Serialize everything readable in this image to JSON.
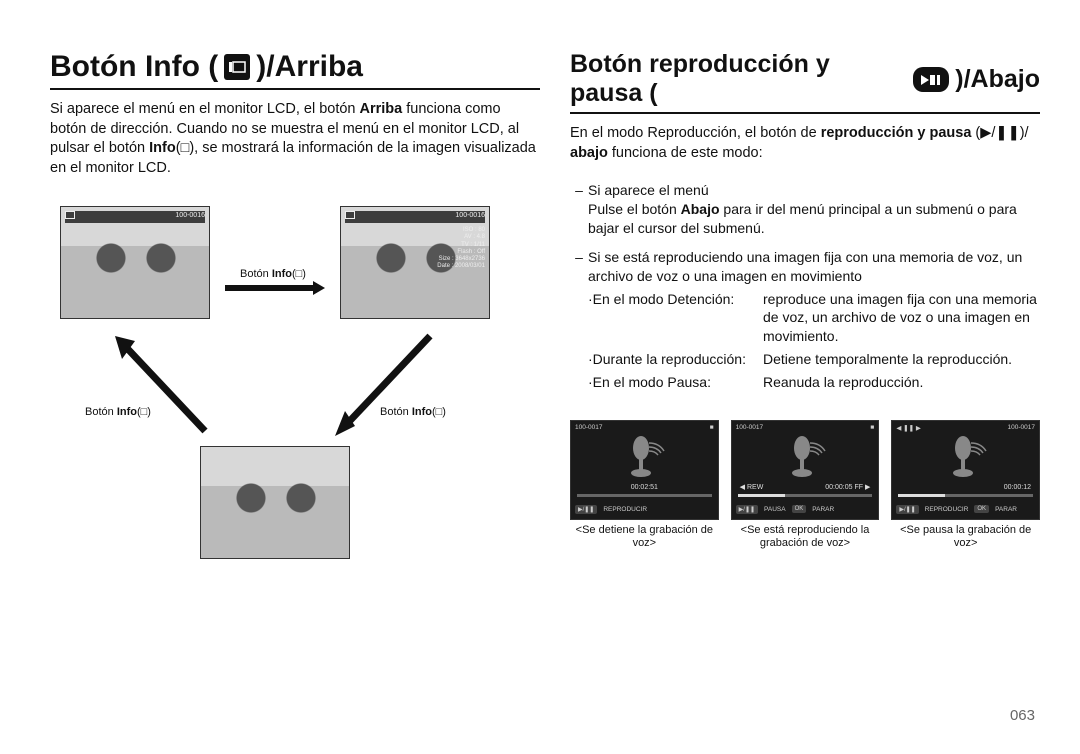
{
  "page_number": "063",
  "left": {
    "title_pre": "Botón Info (",
    "title_post": ")/Arriba",
    "intro_html": "Si aparece el menú en el monitor LCD, el botón <b>Arriba</b> funciona como botón de dirección. Cuando no se muestra el menú en el monitor LCD, al pulsar el botón <b>Info</b>(□), se mostrará la información de la imagen visualizada en el monitor LCD.",
    "thumb_header_counter": "100-0016",
    "button_label_pre": "Botón ",
    "button_label_bold": "Info",
    "button_label_post": "(□)",
    "detail_lines": [
      "ISO",
      "AV",
      "TV",
      "Flash",
      "Size",
      "Date"
    ],
    "detail_vals": [
      "80",
      "4.8",
      "1/11",
      "Off",
      "3648x2736",
      "2008/03/01"
    ]
  },
  "right": {
    "title_pre": "Botón reproducción y pausa (",
    "title_post": ")/Abajo",
    "intro_html": "En el modo Reproducción, el botón de <b>reproducción y pausa</b> (▶/❚❚)/ <b>abajo</b> funciona de este modo:",
    "bullet1_line1": "Si aparece el menú",
    "bullet1_line2_html": "Pulse el botón <b>Abajo</b> para ir del menú principal a un submenú o para bajar el cursor del submenú.",
    "bullet2_line1": "Si se está reproduciendo una imagen fija con una memoria de voz, un archivo de voz o una imagen en movimiento",
    "mode_stop_label": "·En el modo Detención:",
    "mode_stop_value": "reproduce una imagen fija con una memoria de voz, un archivo de voz o una imagen en movimiento.",
    "mode_play_label": "·Durante la reproducción:",
    "mode_play_value": "Detiene temporalmente la reproducción.",
    "mode_pause_label": "·En el modo Pausa:",
    "mode_pause_value": "Reanuda la reproducción.",
    "voice_header_counter": "100-0017",
    "voice1": {
      "time": "00:02:51",
      "footer_btn": "▶/❚❚",
      "footer_text": "REPRODUCIR",
      "caption": "<Se detiene la grabación de voz>"
    },
    "voice2": {
      "time_l": "◀ REW",
      "time_r": "00:00:05 FF ▶",
      "footer_btn1": "▶/❚❚",
      "footer_text1": "PAUSA",
      "footer_btn2": "OK",
      "footer_text2": "PARAR",
      "caption": "<Se está reproduciendo la grabación de voz>"
    },
    "voice3": {
      "time_r": "00:00:12",
      "footer_btn1": "▶/❚❚",
      "footer_text1": "REPRODUCIR",
      "footer_btn2": "OK",
      "footer_text2": "PARAR",
      "caption": "<Se pausa la grabación de voz>"
    }
  },
  "colors": {
    "text": "#111111",
    "rule": "#111111",
    "screen_bg": "#1a1a1a",
    "screen_text": "#cccccc",
    "page_num": "#666666"
  }
}
